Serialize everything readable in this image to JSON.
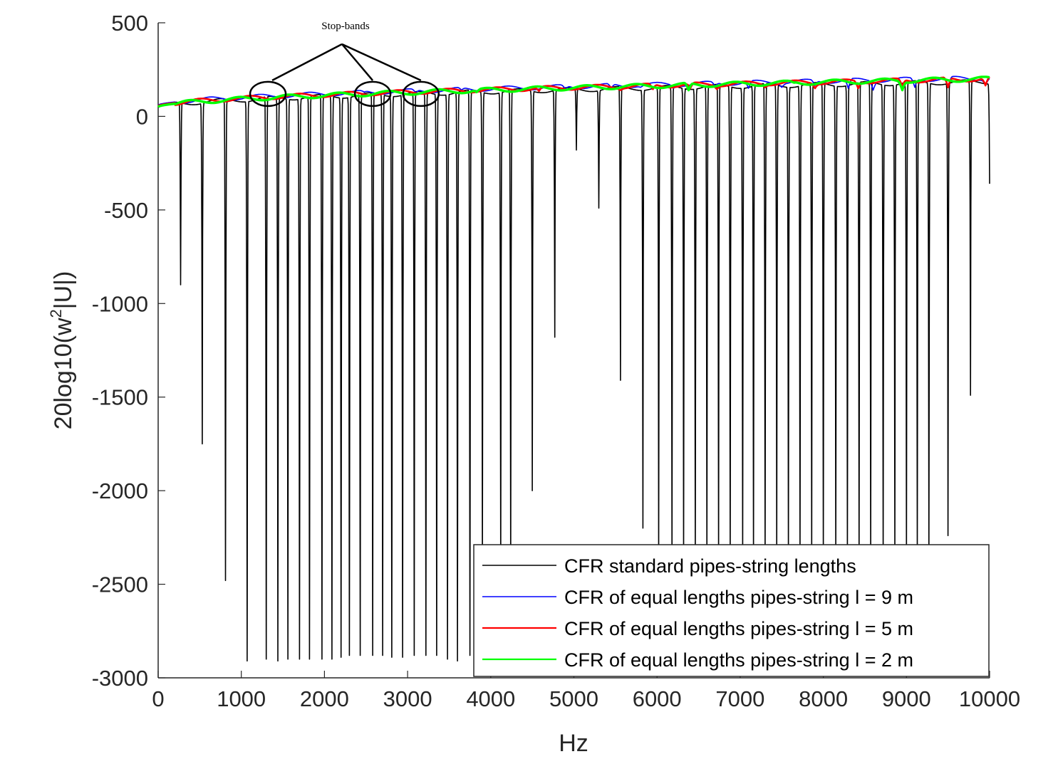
{
  "chart_data": {
    "type": "line",
    "xlabel": "Hz",
    "ylabel_base": "20log10(w",
    "ylabel_sup": "2",
    "ylabel_tail": "|U|)",
    "xlim": [
      0,
      10000
    ],
    "ylim": [
      -3000,
      500
    ],
    "xticks": [
      0,
      1000,
      2000,
      3000,
      4000,
      5000,
      6000,
      7000,
      8000,
      9000,
      10000
    ],
    "yticks": [
      500,
      0,
      -500,
      -1000,
      -1500,
      -2000,
      -2500,
      -3000
    ],
    "xtick_labels": [
      "0",
      "1000",
      "2000",
      "3000",
      "4000",
      "5000",
      "6000",
      "7000",
      "8000",
      "9000",
      "10000"
    ],
    "ytick_labels": [
      "500",
      "0",
      "-500",
      "-1000",
      "-1500",
      "-2000",
      "-2500",
      "-3000"
    ],
    "grid": false,
    "legend_position": "bottom-right",
    "annotation": {
      "text": "Stop-bands",
      "circled_x": [
        1320,
        2580,
        3160
      ],
      "circled_y": 120
    },
    "series": [
      {
        "name": "CFR standard pipes-string lengths",
        "color": "#000000",
        "baseline_start": 50,
        "baseline_end": 185,
        "dips": [
          [
            270,
            -900
          ],
          [
            530,
            -1750
          ],
          [
            810,
            -2480
          ],
          [
            1070,
            -2910
          ],
          [
            1300,
            -2900
          ],
          [
            1440,
            -2910
          ],
          [
            1560,
            -2900
          ],
          [
            1700,
            -2900
          ],
          [
            1820,
            -2900
          ],
          [
            1970,
            -2900
          ],
          [
            2090,
            -2900
          ],
          [
            2200,
            -2890
          ],
          [
            2300,
            -2880
          ],
          [
            2430,
            -2880
          ],
          [
            2580,
            -2880
          ],
          [
            2700,
            -2880
          ],
          [
            2810,
            -2890
          ],
          [
            2940,
            -2890
          ],
          [
            3080,
            -2880
          ],
          [
            3220,
            -2880
          ],
          [
            3350,
            -2880
          ],
          [
            3480,
            -2900
          ],
          [
            3600,
            -2910
          ],
          [
            3750,
            -2880
          ],
          [
            3900,
            -2400
          ],
          [
            4120,
            -2400
          ],
          [
            4240,
            -2400
          ],
          [
            4500,
            -2000
          ],
          [
            4770,
            -1180
          ],
          [
            5030,
            -180
          ],
          [
            5300,
            -490
          ],
          [
            5560,
            -1410
          ],
          [
            5830,
            -2200
          ],
          [
            6020,
            -2350
          ],
          [
            6180,
            -2350
          ],
          [
            6320,
            -2350
          ],
          [
            6460,
            -2350
          ],
          [
            6600,
            -2350
          ],
          [
            6740,
            -2350
          ],
          [
            6880,
            -2350
          ],
          [
            7030,
            -2350
          ],
          [
            7160,
            -2350
          ],
          [
            7300,
            -2350
          ],
          [
            7440,
            -2350
          ],
          [
            7580,
            -2350
          ],
          [
            7720,
            -2350
          ],
          [
            7860,
            -2350
          ],
          [
            8000,
            -2350
          ],
          [
            8150,
            -2350
          ],
          [
            8290,
            -2350
          ],
          [
            8430,
            -2350
          ],
          [
            8570,
            -2350
          ],
          [
            8720,
            -2350
          ],
          [
            8860,
            -2350
          ],
          [
            9000,
            -2350
          ],
          [
            9130,
            -2350
          ],
          [
            9270,
            -2350
          ],
          [
            9500,
            -2240
          ],
          [
            9770,
            -1490
          ],
          [
            10000,
            -360
          ]
        ]
      },
      {
        "name": "CFR of equal lengths pipes-string l = 9 m",
        "color": "#0000ff",
        "baseline_start": 60,
        "baseline_end": 205,
        "dips": [
          [
            290,
            90
          ],
          [
            560,
            110
          ],
          [
            830,
            130
          ],
          [
            1100,
            120
          ],
          [
            1380,
            115
          ],
          [
            1650,
            150
          ],
          [
            1930,
            140
          ],
          [
            2200,
            150
          ],
          [
            2480,
            130
          ],
          [
            2750,
            155
          ],
          [
            3100,
            125
          ],
          [
            3380,
            150
          ],
          [
            3650,
            140
          ],
          [
            3930,
            155
          ],
          [
            4450,
            160
          ],
          [
            4900,
            145
          ],
          [
            5450,
            150
          ],
          [
            5800,
            155
          ],
          [
            6200,
            150
          ],
          [
            6700,
            160
          ],
          [
            7100,
            150
          ],
          [
            7500,
            155
          ],
          [
            7900,
            165
          ],
          [
            8300,
            150
          ],
          [
            8600,
            140
          ],
          [
            9100,
            155
          ],
          [
            9500,
            160
          ],
          [
            9950,
            165
          ]
        ]
      },
      {
        "name": "CFR of equal lengths pipes-string l = 5 m",
        "color": "#ff0000",
        "baseline_start": 55,
        "baseline_end": 200,
        "dips": [
          [
            550,
            100
          ],
          [
            1100,
            130
          ],
          [
            1650,
            140
          ],
          [
            2560,
            120
          ],
          [
            3200,
            135
          ],
          [
            3720,
            145
          ],
          [
            4580,
            135
          ],
          [
            5560,
            140
          ],
          [
            5950,
            145
          ],
          [
            6400,
            150
          ],
          [
            6720,
            145
          ],
          [
            7300,
            155
          ],
          [
            7900,
            150
          ],
          [
            8420,
            150
          ],
          [
            8950,
            160
          ],
          [
            9500,
            155
          ],
          [
            9950,
            165
          ]
        ]
      },
      {
        "name": "CFR of equal lengths pipes-string l = 2 m",
        "color": "#00ff00",
        "baseline_start": 50,
        "baseline_end": 200,
        "dips": [
          [
            1300,
            115
          ],
          [
            2550,
            140
          ],
          [
            3830,
            130
          ],
          [
            5100,
            180
          ],
          [
            6380,
            140
          ],
          [
            7650,
            180
          ],
          [
            8950,
            140
          ]
        ]
      }
    ]
  }
}
